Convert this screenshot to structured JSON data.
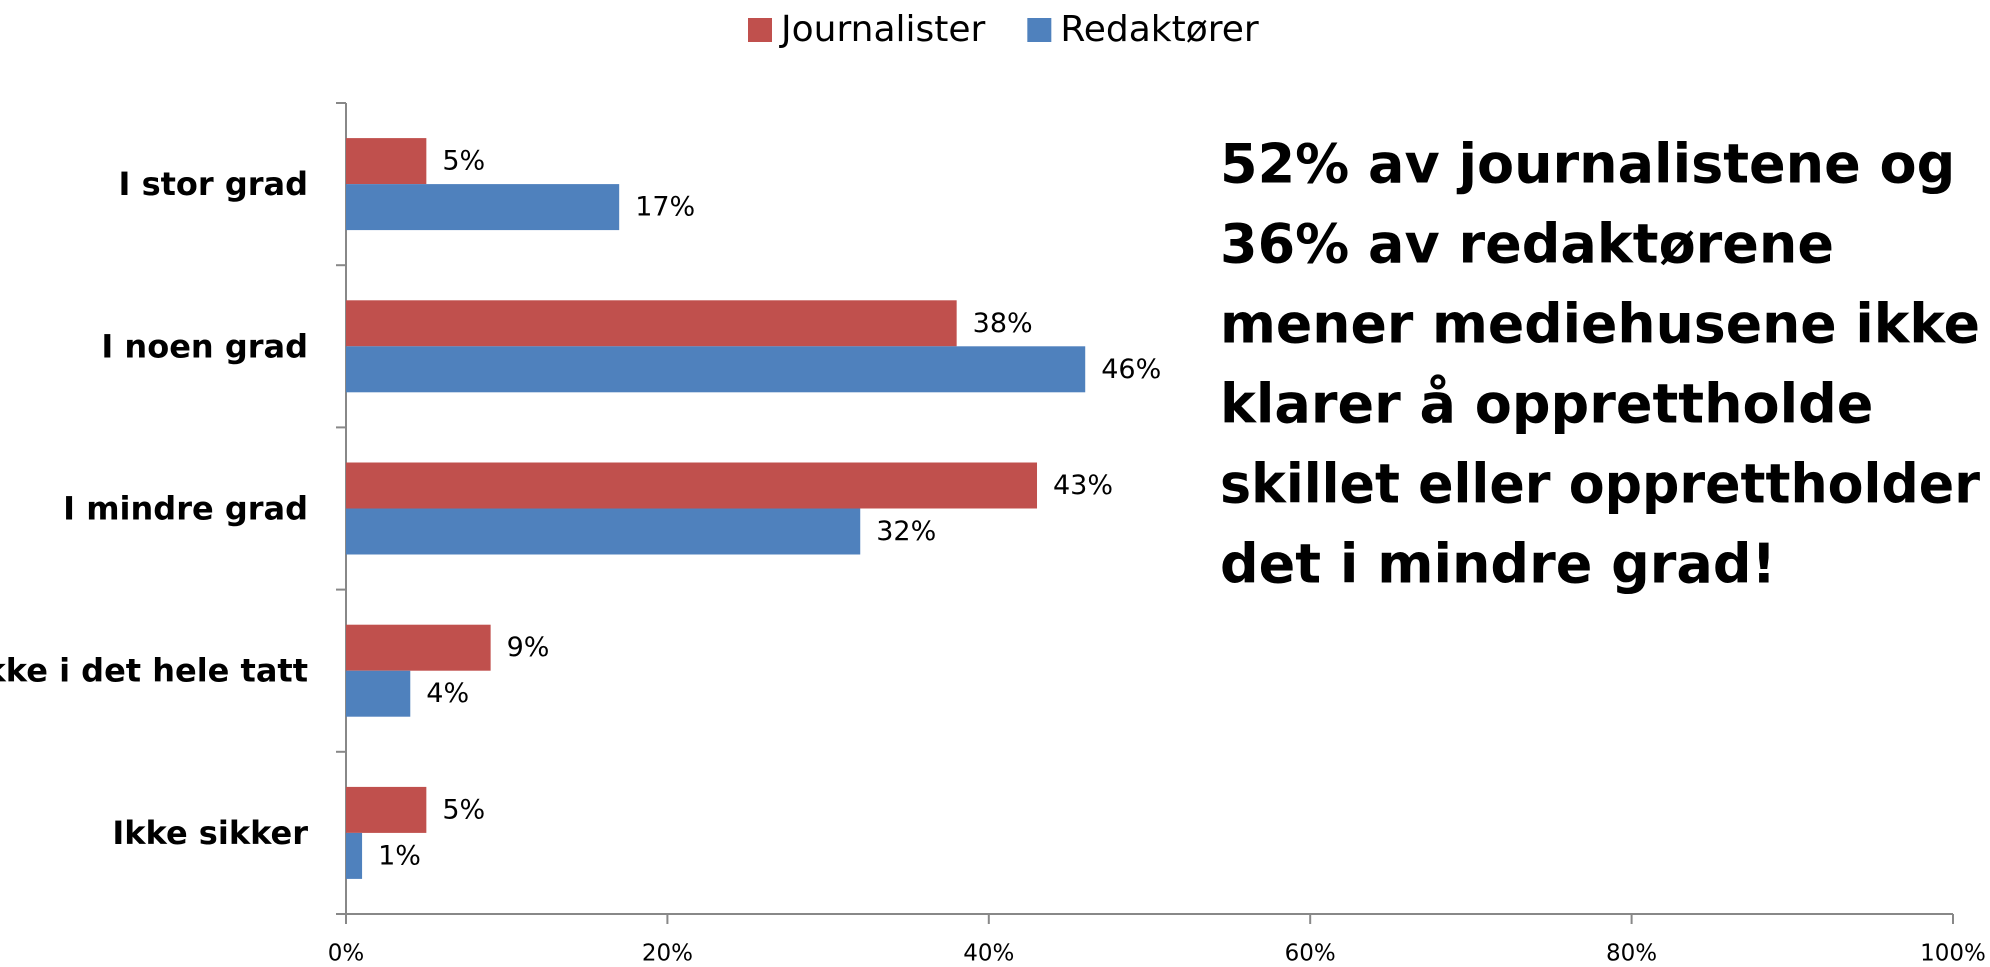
{
  "chart_data": {
    "type": "bar",
    "orientation": "horizontal",
    "categories": [
      "I stor grad",
      "I noen grad",
      "I mindre grad",
      "Ikke i det hele tatt",
      "Ikke sikker"
    ],
    "series": [
      {
        "name": "Journalister",
        "color": "#c0504d",
        "values": [
          5,
          38,
          43,
          9,
          5
        ],
        "value_labels": [
          "5%",
          "38%",
          "43%",
          "9%",
          "5%"
        ]
      },
      {
        "name": "Redaktører",
        "color": "#4f81bd",
        "values": [
          17,
          46,
          32,
          4,
          1
        ],
        "value_labels": [
          "17%",
          "46%",
          "32%",
          "4%",
          "1%"
        ]
      }
    ],
    "xlim": [
      0,
      100
    ],
    "xticks": [
      {
        "value": 0,
        "label": "0%"
      },
      {
        "value": 20,
        "label": "20%"
      },
      {
        "value": 40,
        "label": "40%"
      },
      {
        "value": 60,
        "label": "60%"
      },
      {
        "value": 80,
        "label": "80%"
      },
      {
        "value": 100,
        "label": "100%"
      }
    ],
    "grid": false,
    "legend": "top",
    "annotation": [
      "52% av journalistene og",
      "36% av redaktørene",
      "mener mediehusene ikke",
      "klarer å opprettholde",
      "skillet eller opprettholder",
      "det i mindre grad!"
    ]
  }
}
